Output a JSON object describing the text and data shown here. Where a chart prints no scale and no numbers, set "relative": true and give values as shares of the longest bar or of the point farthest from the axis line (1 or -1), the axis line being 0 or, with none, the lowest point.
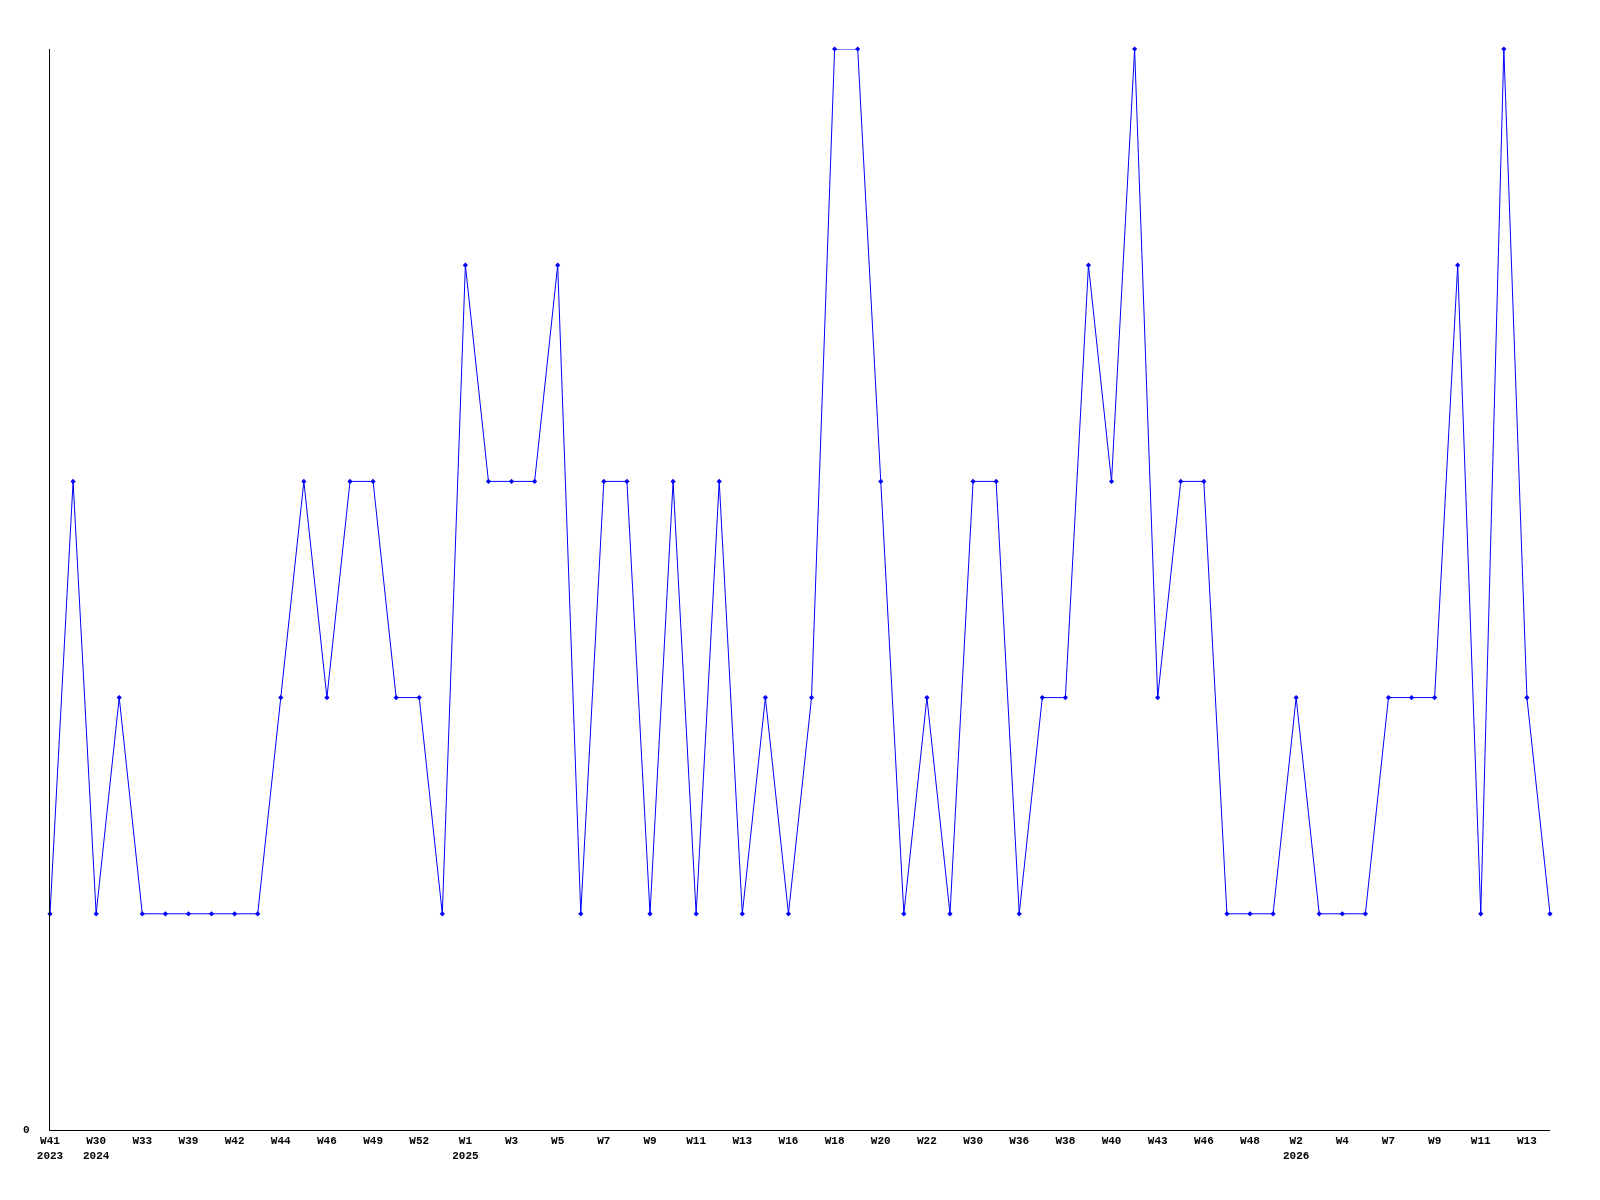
{
  "chart_data": {
    "type": "line",
    "relative": true,
    "color": "#0000ff",
    "marker": "diamond",
    "line_style": "solid",
    "annotations": [
      "0"
    ],
    "categories": [
      "W41\n2023",
      null,
      "W30\n2024",
      null,
      "W33",
      null,
      "W39",
      null,
      "W42",
      null,
      "W44",
      null,
      "W46",
      null,
      "W49",
      null,
      "W52",
      null,
      "W1\n2025",
      null,
      "W3",
      null,
      "W5",
      null,
      "W7",
      null,
      "W9",
      null,
      "W11",
      null,
      "W13",
      null,
      "W16",
      null,
      "W18",
      null,
      "W20",
      null,
      "W22",
      null,
      "W30",
      null,
      "W36",
      null,
      "W38",
      null,
      "W40",
      null,
      "W43",
      null,
      "W46",
      null,
      "W48",
      null,
      "W2\n2026",
      null,
      "W4",
      null,
      "W7",
      null,
      "W9",
      null,
      "W11",
      null,
      "W13",
      null
    ],
    "values": [
      0.2,
      0.6,
      0.2,
      0.4,
      0.2,
      0.2,
      0.2,
      0.2,
      0.2,
      0.2,
      0.4,
      0.6,
      0.4,
      0.6,
      0.6,
      0.4,
      0.4,
      0.2,
      0.8,
      0.6,
      0.6,
      0.6,
      0.8,
      0.2,
      0.6,
      0.6,
      0.2,
      0.6,
      0.2,
      0.6,
      0.2,
      0.4,
      0.2,
      0.4,
      1.0,
      1.0,
      0.6,
      0.2,
      0.4,
      0.2,
      0.6,
      0.6,
      0.2,
      0.4,
      0.4,
      0.8,
      0.6,
      1.0,
      0.4,
      0.6,
      0.6,
      0.2,
      0.2,
      0.2,
      0.4,
      0.2,
      0.2,
      0.2,
      0.4,
      0.4,
      0.4,
      0.8,
      0.2,
      1.0,
      0.4,
      0.2
    ]
  }
}
